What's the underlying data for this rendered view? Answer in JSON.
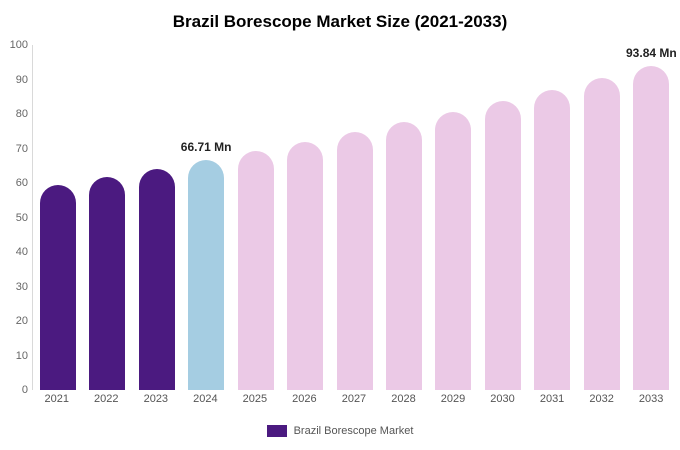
{
  "title": "Brazil Borescope Market Size (2021-2033)",
  "legend": {
    "label": "Brazil Borescope Market",
    "swatch_color": "#4b1a80"
  },
  "colors": {
    "historical_bar": "#4b1a80",
    "current_year_bar": "#a5cde2",
    "forecast_bar": "#ebc9e6",
    "axis_line": "#d9d9d9",
    "tick_text": "#666666",
    "annotation_text": "#222222"
  },
  "chart_data": {
    "type": "bar",
    "title": "Brazil Borescope Market Size (2021-2033)",
    "xlabel": "",
    "ylabel": "",
    "ylim": [
      0,
      100
    ],
    "yticks": [
      0,
      10,
      20,
      30,
      40,
      50,
      60,
      70,
      80,
      90,
      100
    ],
    "grid": false,
    "legend_position": "bottom",
    "categories": [
      "2021",
      "2022",
      "2023",
      "2024",
      "2025",
      "2026",
      "2027",
      "2028",
      "2029",
      "2030",
      "2031",
      "2032",
      "2033"
    ],
    "values": [
      59.5,
      61.8,
      64.2,
      66.71,
      69.3,
      72.0,
      74.8,
      77.7,
      80.7,
      83.8,
      87.0,
      90.4,
      93.84
    ],
    "bar_colors": [
      "#4b1a80",
      "#4b1a80",
      "#4b1a80",
      "#a5cde2",
      "#ebc9e6",
      "#ebc9e6",
      "#ebc9e6",
      "#ebc9e6",
      "#ebc9e6",
      "#ebc9e6",
      "#ebc9e6",
      "#ebc9e6",
      "#ebc9e6"
    ],
    "value_labels": {
      "2024": "66.71 Mn",
      "2033": "93.84 Mn"
    },
    "series_name": "Brazil Borescope Market"
  }
}
